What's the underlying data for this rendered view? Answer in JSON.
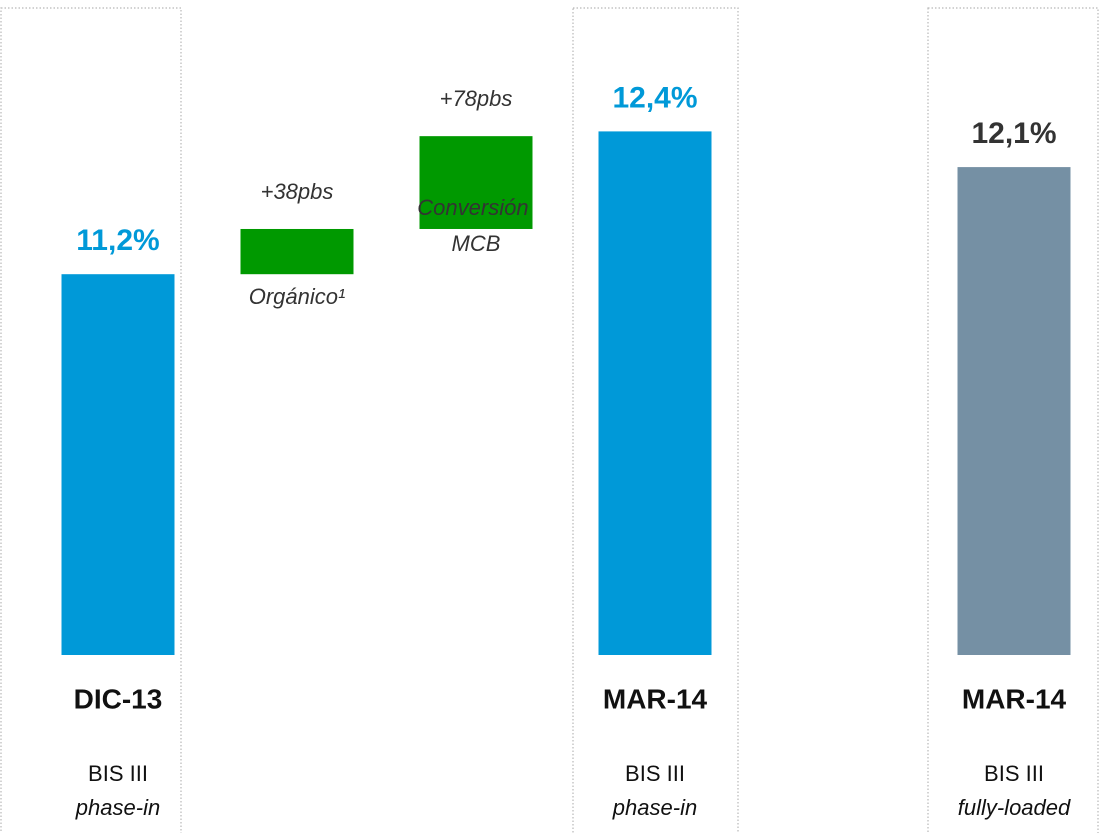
{
  "chart_data": {
    "type": "waterfall",
    "categories": [
      "DIC-13",
      "Orgánico¹",
      "Conversión MCB",
      "MAR-14",
      "MAR-14"
    ],
    "values": [
      11.2,
      0.38,
      0.78,
      12.4,
      12.1
    ],
    "value_labels": [
      "11,2%",
      "+38pbs",
      "+78pbs",
      "12,4%",
      "12,1%"
    ],
    "kinds": [
      "total",
      "delta",
      "delta",
      "total",
      "total"
    ],
    "colors": [
      "#0099d8",
      "#009900",
      "#009900",
      "#0099d8",
      "#7590a4"
    ],
    "label_colors": [
      "#0099d8",
      "#333333",
      "#333333",
      "#0099d8",
      "#333333"
    ],
    "sublabels": [
      [
        "BIS III",
        "phase-in"
      ],
      null,
      null,
      [
        "BIS III",
        "phase-in"
      ],
      [
        "BIS III",
        "fully-loaded"
      ]
    ],
    "ylim": [
      8,
      13
    ]
  }
}
